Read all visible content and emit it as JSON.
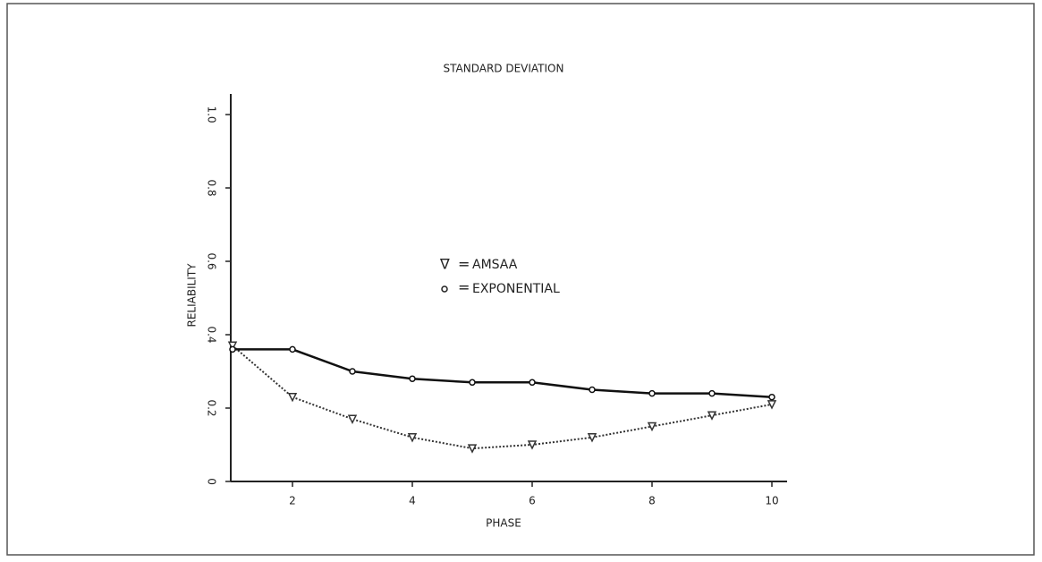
{
  "chart_data": {
    "type": "line",
    "title": "STANDARD DEVIATION",
    "x_label": "PHASE",
    "y_label": "RELIABILITY",
    "x": [
      1,
      2,
      3,
      4,
      5,
      6,
      7,
      8,
      9,
      10
    ],
    "series": [
      {
        "name": "AMSAA",
        "color": "#333333",
        "values": [
          0.37,
          0.23,
          0.17,
          0.12,
          0.09,
          0.1,
          0.12,
          0.15,
          0.18,
          0.21
        ]
      },
      {
        "name": "EXPONENTIAL",
        "color": "#111111",
        "values": [
          0.36,
          0.36,
          0.3,
          0.28,
          0.27,
          0.27,
          0.25,
          0.24,
          0.24,
          0.23
        ]
      }
    ],
    "xlim": [
      1,
      10
    ],
    "xticks": [
      2,
      4,
      6,
      8,
      10
    ],
    "ylim": [
      0,
      1
    ],
    "yticks": [
      0,
      0.2,
      0.4,
      0.6,
      0.8,
      {
        "value": 1,
        "label": "1.0"
      }
    ]
  }
}
